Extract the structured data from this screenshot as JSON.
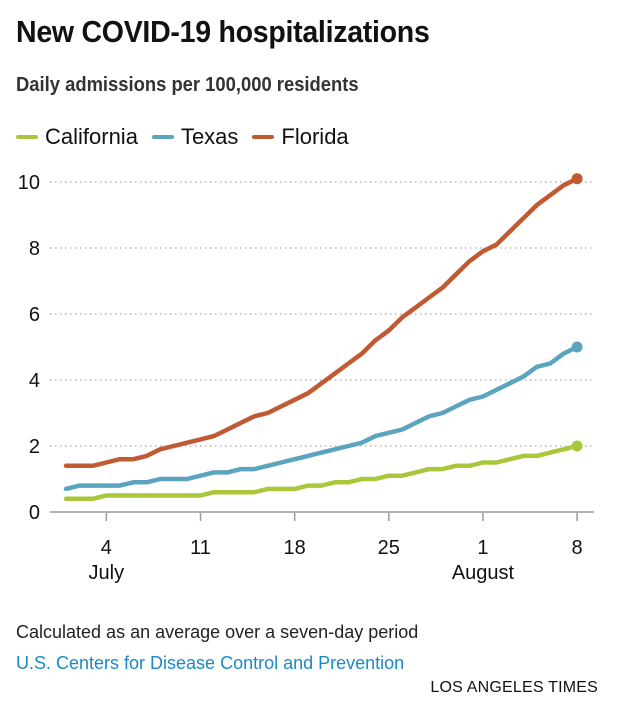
{
  "header": {
    "title": "New COVID-19 hospitalizations",
    "subtitle": "Daily admissions per 100,000 residents"
  },
  "footer": {
    "note": "Calculated as an average over a seven-day period",
    "source": "U.S. Centers for Disease Control and Prevention",
    "credit": "LOS ANGELES TIMES"
  },
  "chart_data": {
    "type": "line",
    "title": "New COVID-19 hospitalizations",
    "subtitle": "Daily admissions per 100,000 residents",
    "xlabel": "",
    "ylabel": "",
    "x_start": "July 1",
    "x_end": "August 8",
    "x_days": 39,
    "ylim": [
      0,
      10
    ],
    "yticks": [
      0,
      2,
      4,
      6,
      8,
      10
    ],
    "grid": true,
    "legend_position": "top-left",
    "xticks": [
      {
        "day_index": 3,
        "label": "4",
        "month": "July"
      },
      {
        "day_index": 10,
        "label": "11",
        "month": ""
      },
      {
        "day_index": 17,
        "label": "18",
        "month": ""
      },
      {
        "day_index": 24,
        "label": "25",
        "month": ""
      },
      {
        "day_index": 31,
        "label": "1",
        "month": "August"
      },
      {
        "day_index": 38,
        "label": "8",
        "month": ""
      }
    ],
    "series": [
      {
        "name": "California",
        "color": "#a8c83a",
        "values": [
          0.4,
          0.4,
          0.4,
          0.5,
          0.5,
          0.5,
          0.5,
          0.5,
          0.5,
          0.5,
          0.5,
          0.6,
          0.6,
          0.6,
          0.6,
          0.7,
          0.7,
          0.7,
          0.8,
          0.8,
          0.9,
          0.9,
          1.0,
          1.0,
          1.1,
          1.1,
          1.2,
          1.3,
          1.3,
          1.4,
          1.4,
          1.5,
          1.5,
          1.6,
          1.7,
          1.7,
          1.8,
          1.9,
          2.0
        ]
      },
      {
        "name": "Texas",
        "color": "#5ba4c0",
        "values": [
          0.7,
          0.8,
          0.8,
          0.8,
          0.8,
          0.9,
          0.9,
          1.0,
          1.0,
          1.0,
          1.1,
          1.2,
          1.2,
          1.3,
          1.3,
          1.4,
          1.5,
          1.6,
          1.7,
          1.8,
          1.9,
          2.0,
          2.1,
          2.3,
          2.4,
          2.5,
          2.7,
          2.9,
          3.0,
          3.2,
          3.4,
          3.5,
          3.7,
          3.9,
          4.1,
          4.4,
          4.5,
          4.8,
          5.0
        ]
      },
      {
        "name": "Florida",
        "color": "#c05a33",
        "values": [
          1.4,
          1.4,
          1.4,
          1.5,
          1.6,
          1.6,
          1.7,
          1.9,
          2.0,
          2.1,
          2.2,
          2.3,
          2.5,
          2.7,
          2.9,
          3.0,
          3.2,
          3.4,
          3.6,
          3.9,
          4.2,
          4.5,
          4.8,
          5.2,
          5.5,
          5.9,
          6.2,
          6.5,
          6.8,
          7.2,
          7.6,
          7.9,
          8.1,
          8.5,
          8.9,
          9.3,
          9.6,
          9.9,
          10.1
        ]
      }
    ]
  }
}
